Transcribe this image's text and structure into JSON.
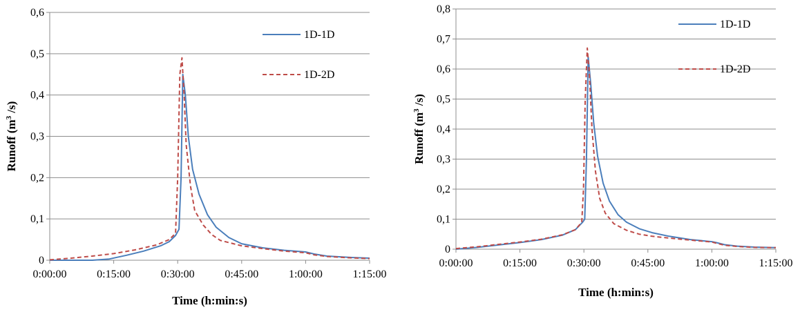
{
  "chart_data": [
    {
      "type": "line",
      "xlabel": "Time (h:min:s)",
      "ylabel_text": "Runoff  (m",
      "ylabel_sup": "3",
      "ylabel_tail": " /s)",
      "x_ticks": [
        "0:00:00",
        "0:15:00",
        "0:30:00",
        "0:45:00",
        "1:00:00",
        "1:15:00"
      ],
      "y_ticks": [
        "0",
        "0,1",
        "0,2",
        "0,3",
        "0,4",
        "0,5",
        "0,6"
      ],
      "xlim_minutes": [
        0,
        75
      ],
      "ylim": [
        0,
        0.6
      ],
      "grid": true,
      "legend_position": "top-right",
      "series": [
        {
          "name": "1D-1D",
          "color": "#4a7ebb",
          "dash": "solid",
          "points": [
            [
              0,
              0
            ],
            [
              10,
              0
            ],
            [
              14,
              0.003
            ],
            [
              18,
              0.012
            ],
            [
              22,
              0.022
            ],
            [
              26,
              0.035
            ],
            [
              28,
              0.045
            ],
            [
              29.5,
              0.06
            ],
            [
              30.3,
              0.075
            ],
            [
              30.8,
              0.2
            ],
            [
              31.2,
              0.45
            ],
            [
              31.8,
              0.4
            ],
            [
              32.5,
              0.3
            ],
            [
              33.5,
              0.22
            ],
            [
              35,
              0.16
            ],
            [
              37,
              0.11
            ],
            [
              39,
              0.08
            ],
            [
              42,
              0.055
            ],
            [
              45,
              0.04
            ],
            [
              50,
              0.03
            ],
            [
              55,
              0.024
            ],
            [
              60,
              0.02
            ],
            [
              62,
              0.015
            ],
            [
              65,
              0.01
            ],
            [
              70,
              0.007
            ],
            [
              75,
              0.005
            ]
          ]
        },
        {
          "name": "1D-2D",
          "color": "#be4b48",
          "dash": "6,4",
          "points": [
            [
              0,
              0.001
            ],
            [
              5,
              0.005
            ],
            [
              10,
              0.01
            ],
            [
              15,
              0.016
            ],
            [
              20,
              0.025
            ],
            [
              25,
              0.037
            ],
            [
              28,
              0.05
            ],
            [
              29.5,
              0.065
            ],
            [
              30,
              0.2
            ],
            [
              30.5,
              0.45
            ],
            [
              31,
              0.49
            ],
            [
              31.5,
              0.4
            ],
            [
              32,
              0.28
            ],
            [
              33,
              0.18
            ],
            [
              34,
              0.12
            ],
            [
              36,
              0.085
            ],
            [
              38,
              0.062
            ],
            [
              40,
              0.048
            ],
            [
              45,
              0.035
            ],
            [
              50,
              0.028
            ],
            [
              55,
              0.022
            ],
            [
              60,
              0.018
            ],
            [
              62,
              0.013
            ],
            [
              65,
              0.009
            ],
            [
              70,
              0.006
            ],
            [
              75,
              0.004
            ]
          ]
        }
      ]
    },
    {
      "type": "line",
      "xlabel": "Time (h:min:s)",
      "ylabel_text": "Runoff  (m",
      "ylabel_sup": "3",
      "ylabel_tail": " /s)",
      "x_ticks": [
        "0:00:00",
        "0:15:00",
        "0:30:00",
        "0:45:00",
        "1:00:00",
        "1:15:00"
      ],
      "y_ticks": [
        "0",
        "0,1",
        "0,2",
        "0,3",
        "0,4",
        "0,5",
        "0,6",
        "0,7",
        "0,8"
      ],
      "xlim_minutes": [
        0,
        75
      ],
      "ylim": [
        0,
        0.8
      ],
      "grid": true,
      "legend_position": "top-right",
      "series": [
        {
          "name": "1D-1D",
          "color": "#4a7ebb",
          "dash": "solid",
          "points": [
            [
              0,
              0
            ],
            [
              5,
              0.006
            ],
            [
              10,
              0.014
            ],
            [
              15,
              0.022
            ],
            [
              20,
              0.032
            ],
            [
              25,
              0.047
            ],
            [
              28,
              0.065
            ],
            [
              29.7,
              0.09
            ],
            [
              30.2,
              0.1
            ],
            [
              30.6,
              0.3
            ],
            [
              31,
              0.64
            ],
            [
              31.6,
              0.55
            ],
            [
              32.3,
              0.42
            ],
            [
              33.2,
              0.31
            ],
            [
              34.5,
              0.22
            ],
            [
              36,
              0.16
            ],
            [
              38,
              0.115
            ],
            [
              40,
              0.09
            ],
            [
              43,
              0.068
            ],
            [
              46,
              0.055
            ],
            [
              50,
              0.043
            ],
            [
              55,
              0.032
            ],
            [
              60,
              0.025
            ],
            [
              61,
              0.022
            ],
            [
              63,
              0.015
            ],
            [
              66,
              0.01
            ],
            [
              70,
              0.007
            ],
            [
              75,
              0.005
            ]
          ]
        },
        {
          "name": "1D-2D",
          "color": "#be4b48",
          "dash": "6,4",
          "points": [
            [
              0,
              0.002
            ],
            [
              5,
              0.008
            ],
            [
              10,
              0.016
            ],
            [
              15,
              0.024
            ],
            [
              20,
              0.033
            ],
            [
              25,
              0.048
            ],
            [
              28,
              0.065
            ],
            [
              29.5,
              0.09
            ],
            [
              29.9,
              0.2
            ],
            [
              30.3,
              0.5
            ],
            [
              30.8,
              0.67
            ],
            [
              31.3,
              0.58
            ],
            [
              31.9,
              0.4
            ],
            [
              32.7,
              0.26
            ],
            [
              33.7,
              0.17
            ],
            [
              35,
              0.12
            ],
            [
              37,
              0.085
            ],
            [
              40,
              0.063
            ],
            [
              43,
              0.05
            ],
            [
              46,
              0.043
            ],
            [
              50,
              0.037
            ],
            [
              55,
              0.03
            ],
            [
              60,
              0.024
            ],
            [
              61,
              0.02
            ],
            [
              63,
              0.013
            ],
            [
              66,
              0.009
            ],
            [
              70,
              0.006
            ],
            [
              75,
              0.005
            ]
          ]
        }
      ]
    }
  ]
}
